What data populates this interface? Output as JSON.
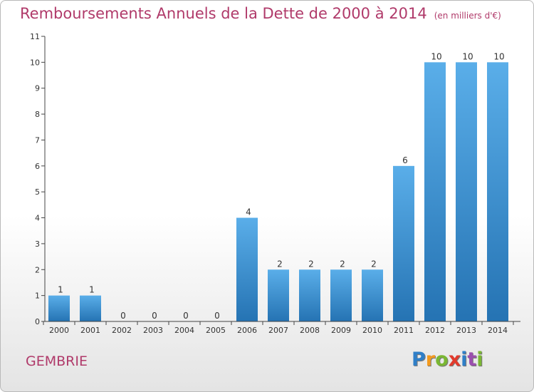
{
  "header": {
    "title": "Remboursements Annuels de la Dette de 2000 à 2014",
    "unit": "(en milliers d'€)"
  },
  "footer": {
    "commune": "GEMBRIE",
    "brand_letters": [
      "P",
      "r",
      "o",
      "x",
      "i",
      "t",
      "i"
    ],
    "brand_colors": [
      "#2f7fc8",
      "#f39a1f",
      "#7ab733",
      "#e23a2c",
      "#2f7fc8",
      "#9b4fae",
      "#7ab733"
    ]
  },
  "colors": {
    "bar_top": "#5aaee9",
    "bar_bottom": "#2573b3",
    "axis": "#444444",
    "text": "#333333",
    "title": "#b03a6a"
  },
  "chart_data": {
    "type": "bar",
    "title": "Remboursements Annuels de la Dette de 2000 à 2014",
    "subtitle": "(en milliers d'€)",
    "categories": [
      "2000",
      "2001",
      "2002",
      "2003",
      "2004",
      "2005",
      "2006",
      "2007",
      "2008",
      "2009",
      "2010",
      "2011",
      "2012",
      "2013",
      "2014"
    ],
    "values": [
      1,
      1,
      0,
      0,
      0,
      0,
      4,
      2,
      2,
      2,
      2,
      6,
      10,
      10,
      10
    ],
    "data_labels": [
      "1",
      "1",
      "0",
      "0",
      "0",
      "0",
      "4",
      "2",
      "2",
      "2",
      "2",
      "6",
      "10",
      "10",
      "10"
    ],
    "y_ticks": [
      "0",
      "1",
      "2",
      "3",
      "4",
      "5",
      "6",
      "7",
      "8",
      "9",
      "10",
      "11"
    ],
    "ylim": [
      0,
      11
    ],
    "grid": false,
    "legend": "none"
  }
}
